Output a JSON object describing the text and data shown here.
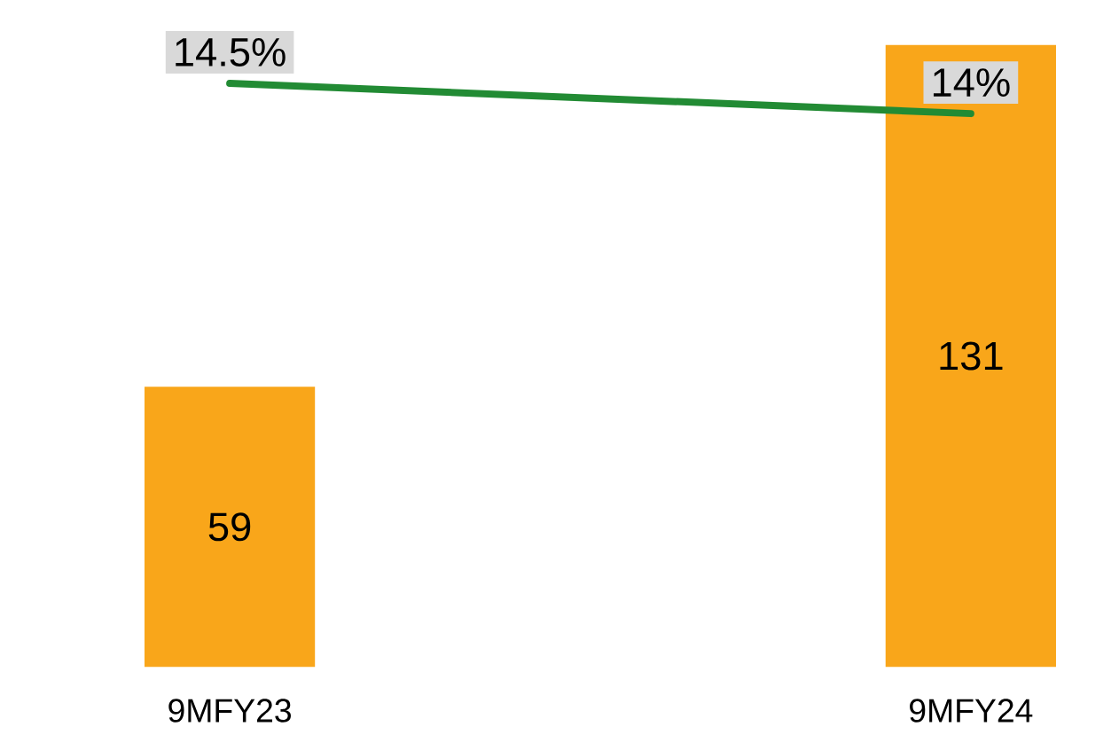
{
  "chart_data": {
    "type": "bar",
    "categories": [
      "9MFY23",
      "9MFY24"
    ],
    "tick_labels": "x",
    "series": [
      {
        "color": "#f9a61a",
        "values": [
          59,
          131
        ],
        "value_labels": [
          "59",
          "131"
        ]
      },
      {
        "type": "line",
        "axis": "y2",
        "color": "#228b34",
        "values": [
          14.5,
          14
        ],
        "value_labels": [
          "14.5%",
          "14%"
        ]
      }
    ]
  }
}
